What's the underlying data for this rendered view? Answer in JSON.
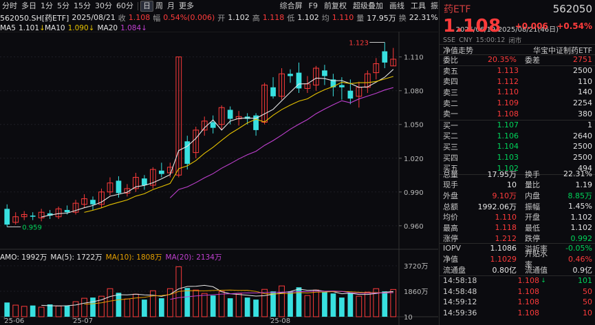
{
  "toolbar": {
    "left": [
      "分时",
      "多日",
      "1分",
      "5分",
      "15分",
      "30分",
      "60分",
      "日",
      "周",
      "月",
      "更多"
    ],
    "active": "日",
    "right": [
      "综合屏",
      "F9",
      "前复权",
      "超级叠加",
      "画线",
      "工具"
    ],
    "extra": "振"
  },
  "info": {
    "code": "562050.SH[药ETF]",
    "date": "2025/08/21",
    "close_label": "收",
    "close": "1.108",
    "change_label": "幅",
    "change": "0.54%(0.006)",
    "open_label": "开",
    "open": "1.102",
    "high_label": "高",
    "high": "1.118",
    "low_label": "低",
    "low": "1.102",
    "avg_label": "均",
    "avg": "1.110",
    "vol_label": "量",
    "vol": "17.95万",
    "turn_label": "换",
    "turn": "22.31%"
  },
  "ma": {
    "ma5_label": "MA5",
    "ma5": "1.101",
    "ma10_label": "MA10",
    "ma10": "1.090",
    "ma20_label": "MA20",
    "ma20": "1.084"
  },
  "range_label": "2025/06/19-2025/08/21(46日)",
  "price_axis": [
    "1.110",
    "1.080",
    "1.050",
    "1.020",
    "0.990",
    "0.960"
  ],
  "annotations": {
    "high": "1.123",
    "low": "0.959"
  },
  "volume": {
    "amo_label": "AMO: 1992万",
    "ma5_label": "MA(5): 1722万",
    "ma10_label": "MA(10): 1808万",
    "ma20_label": "MA(20): 2134万",
    "axis": [
      "3720万",
      "1860万",
      "10"
    ]
  },
  "x_axis": [
    "25-06",
    "25-07",
    "25-08"
  ],
  "colors": {
    "up": "#ff3b3b",
    "down": "#38e0e0",
    "ma5": "#e8e8e8",
    "ma10": "#e6c200",
    "ma20": "#c040d0"
  },
  "chart_data": {
    "type": "candlestick",
    "candles": [
      [
        0.975,
        0.961,
        0.979,
        0.959
      ],
      [
        0.963,
        0.968,
        0.972,
        0.961
      ],
      [
        0.968,
        0.97,
        0.973,
        0.965
      ],
      [
        0.969,
        0.968,
        0.972,
        0.965
      ],
      [
        0.967,
        0.972,
        0.975,
        0.964
      ],
      [
        0.971,
        0.969,
        0.974,
        0.966
      ],
      [
        0.968,
        0.975,
        0.977,
        0.966
      ],
      [
        0.974,
        0.972,
        0.978,
        0.97
      ],
      [
        0.972,
        0.98,
        0.983,
        0.97
      ],
      [
        0.979,
        0.984,
        0.988,
        0.976
      ],
      [
        0.983,
        0.979,
        0.986,
        0.974
      ],
      [
        0.979,
        0.99,
        0.993,
        0.976
      ],
      [
        0.99,
        0.998,
        1.003,
        0.987
      ],
      [
        1.0,
        0.989,
        1.004,
        0.985
      ],
      [
        0.989,
        0.993,
        0.997,
        0.986
      ],
      [
        0.993,
        1.003,
        1.007,
        0.99
      ],
      [
        1.002,
        0.996,
        1.005,
        0.992
      ],
      [
        0.996,
        1.01,
        1.012,
        0.993
      ],
      [
        1.009,
        1.006,
        1.016,
        1.003
      ],
      [
        1.007,
        1.012,
        1.016,
        1.003
      ],
      [
        1.005,
        1.11,
        1.11,
        1.003
      ],
      [
        1.035,
        1.015,
        1.04,
        1.01
      ],
      [
        1.025,
        1.045,
        1.048,
        1.02
      ],
      [
        1.045,
        1.053,
        1.057,
        1.04
      ],
      [
        1.052,
        1.047,
        1.058,
        1.042
      ],
      [
        1.05,
        1.065,
        1.067,
        1.045
      ],
      [
        1.063,
        1.055,
        1.066,
        1.05
      ],
      [
        1.055,
        1.057,
        1.062,
        1.049
      ],
      [
        1.057,
        1.055,
        1.06,
        1.05
      ],
      [
        1.058,
        1.045,
        1.06,
        1.04
      ],
      [
        1.052,
        1.085,
        1.087,
        1.05
      ],
      [
        1.083,
        1.075,
        1.092,
        1.073
      ],
      [
        1.075,
        1.095,
        1.1,
        1.072
      ],
      [
        1.095,
        1.093,
        1.099,
        1.087
      ],
      [
        1.096,
        1.082,
        1.105,
        1.078
      ],
      [
        1.082,
        1.086,
        1.093,
        1.078
      ],
      [
        1.085,
        1.1,
        1.102,
        1.08
      ],
      [
        1.098,
        1.093,
        1.103,
        1.085
      ],
      [
        1.09,
        1.083,
        1.095,
        1.075
      ],
      [
        1.085,
        1.083,
        1.092,
        1.072
      ],
      [
        1.08,
        1.073,
        1.09,
        1.068
      ],
      [
        1.075,
        1.083,
        1.088,
        1.065
      ],
      [
        1.083,
        1.095,
        1.098,
        1.078
      ],
      [
        1.096,
        1.104,
        1.109,
        1.09
      ],
      [
        1.115,
        1.105,
        1.123,
        1.1
      ],
      [
        1.102,
        1.108,
        1.118,
        1.102
      ]
    ],
    "ma_series": {
      "MA5_start": 4,
      "MA10_start": 9,
      "MA20_start": 19
    },
    "volumes": [
      1040,
      850,
      760,
      820,
      700,
      900,
      780,
      820,
      1100,
      1350,
      1400,
      1500,
      2050,
      1750,
      1300,
      1650,
      1250,
      1900,
      1350,
      2050,
      3650,
      2100,
      1950,
      1700,
      1550,
      1850,
      1350,
      1700,
      1400,
      1250,
      2000,
      1850,
      2250,
      1850,
      2150,
      1550,
      1950,
      1800,
      1700,
      1400,
      1750,
      1500,
      1800,
      2050,
      1850,
      1992
    ],
    "ylim": [
      0.955,
      1.13
    ],
    "vol_ylim": [
      0,
      3720
    ]
  },
  "panel": {
    "name": "药ETF",
    "code": "562050",
    "price": "1.108",
    "change": "+0.006",
    "change_pct": "+0.54%",
    "meta": [
      "SSE",
      "CNY",
      "15:00:12",
      "闭市"
    ],
    "sub_left": "净值走势",
    "sub_right": "华宝中证制药ETF",
    "ratio_label": "委比",
    "ratio": "20.35%",
    "diff_label": "委差",
    "diff": "2751",
    "asks": [
      {
        "label": "卖五",
        "price": "1.113",
        "vol": "2500"
      },
      {
        "label": "卖四",
        "price": "1.112",
        "vol": "110"
      },
      {
        "label": "卖三",
        "price": "1.110",
        "vol": "140"
      },
      {
        "label": "卖二",
        "price": "1.109",
        "vol": "2254"
      },
      {
        "label": "卖一",
        "price": "1.108",
        "vol": "380"
      }
    ],
    "bids": [
      {
        "label": "买一",
        "price": "1.107",
        "vol": "1"
      },
      {
        "label": "买二",
        "price": "1.106",
        "vol": "2640"
      },
      {
        "label": "买三",
        "price": "1.104",
        "vol": "2500"
      },
      {
        "label": "买四",
        "price": "1.103",
        "vol": "2500"
      },
      {
        "label": "买五",
        "price": "1.102",
        "vol": "494"
      }
    ],
    "stats": [
      [
        "总量",
        "17.95万",
        "换手",
        "22.31%"
      ],
      [
        "现手",
        "10",
        "量比",
        "1.19"
      ],
      [
        "外盘",
        "9.10万",
        "内盘",
        "8.85万"
      ],
      [
        "总额",
        "1992.06万",
        "振幅",
        "1.45%"
      ],
      [
        "均价",
        "1.110",
        "开盘",
        "1.102"
      ],
      [
        "最高",
        "1.118",
        "最低",
        "1.102"
      ],
      [
        "涨停",
        "1.212",
        "跌停",
        "0.992"
      ]
    ],
    "extra": [
      [
        "IOPV",
        "1.1086",
        "溢折率",
        "-0.05%"
      ],
      [
        "净值",
        "1.1029",
        "升贴水率",
        "0.46%"
      ],
      [
        "流通盘",
        "0.80亿",
        "流通值",
        "0.9亿"
      ]
    ],
    "ticks": [
      {
        "time": "14:58:18",
        "price": "1.108",
        "arrow": "↓",
        "vol": "101"
      },
      {
        "time": "14:58:48",
        "price": "1.108",
        "arrow": "",
        "vol": "50"
      },
      {
        "time": "14:59:12",
        "price": "1.108",
        "arrow": "",
        "vol": "50"
      },
      {
        "time": "14:59:36",
        "price": "1.108",
        "arrow": "",
        "vol": "10"
      }
    ]
  }
}
